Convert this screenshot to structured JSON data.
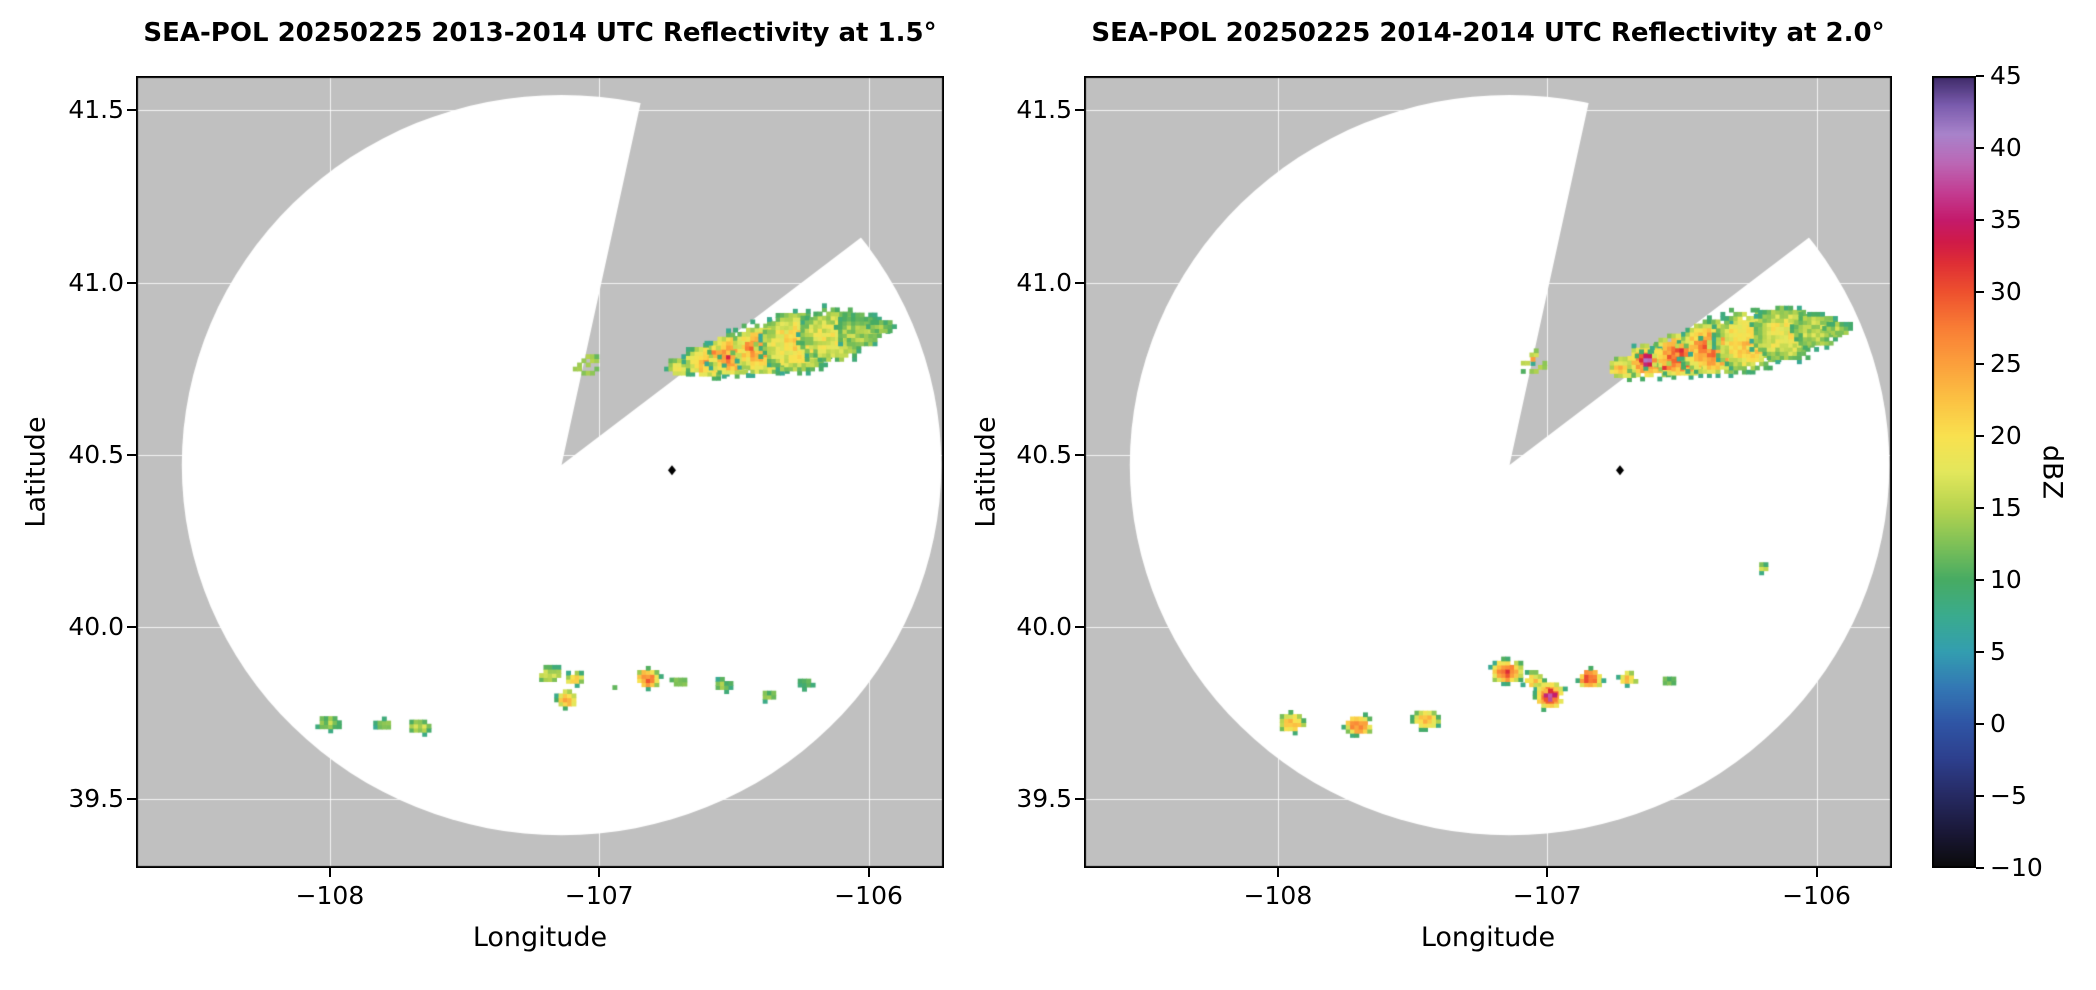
{
  "style": {
    "background": "#ffffff",
    "outside_gray": "#c0c0c0",
    "coverage_white": "#ffffff",
    "frame_color": "#000000"
  },
  "chart_data": {
    "type": "heatmap",
    "subtype": "radar-ppi-reflectivity",
    "colorbar": {
      "label": "dBZ",
      "range": [
        -10,
        45
      ],
      "ticks": [
        {
          "v": -10,
          "label": "−10"
        },
        {
          "v": -5,
          "label": "−5"
        },
        {
          "v": 0,
          "label": "0"
        },
        {
          "v": 5,
          "label": "5"
        },
        {
          "v": 10,
          "label": "10"
        },
        {
          "v": 15,
          "label": "15"
        },
        {
          "v": 20,
          "label": "20"
        },
        {
          "v": 25,
          "label": "25"
        },
        {
          "v": 30,
          "label": "30"
        },
        {
          "v": 35,
          "label": "35"
        },
        {
          "v": 40,
          "label": "40"
        },
        {
          "v": 45,
          "label": "45"
        }
      ],
      "stops": [
        [
          -10,
          "#0b0b0b"
        ],
        [
          -7.5,
          "#1a1838"
        ],
        [
          -5,
          "#262a63"
        ],
        [
          -2.5,
          "#2d3f8d"
        ],
        [
          0,
          "#2f55a5"
        ],
        [
          2.5,
          "#3378b4"
        ],
        [
          5,
          "#339eb0"
        ],
        [
          7.5,
          "#3aab8e"
        ],
        [
          10,
          "#47ab63"
        ],
        [
          12.5,
          "#7fc157"
        ],
        [
          15,
          "#b7d44f"
        ],
        [
          17.5,
          "#e3e75c"
        ],
        [
          20,
          "#f9e14f"
        ],
        [
          22.5,
          "#fbc243"
        ],
        [
          25,
          "#fba03c"
        ],
        [
          27.5,
          "#f97e35"
        ],
        [
          30,
          "#ee512e"
        ],
        [
          32,
          "#df2f35"
        ],
        [
          33.5,
          "#d01a48"
        ],
        [
          35,
          "#c41a6b"
        ],
        [
          37,
          "#c33e93"
        ],
        [
          39,
          "#bb68b6"
        ],
        [
          41,
          "#a883cb"
        ],
        [
          43,
          "#7b5cae"
        ],
        [
          45,
          "#3d2a68"
        ]
      ]
    },
    "panels": [
      {
        "title": "SEA-POL 20250225 2013-2014 UTC Reflectivity at 1.5°",
        "xlabel": "Longitude",
        "ylabel": "Latitude",
        "xlim": [
          -108.72,
          -105.72
        ],
        "ylim": [
          39.3,
          41.6
        ],
        "xticks": [
          {
            "v": -108,
            "label": "−108"
          },
          {
            "v": -107,
            "label": "−107"
          },
          {
            "v": -106,
            "label": "−106"
          }
        ],
        "yticks": [
          {
            "v": 39.5,
            "label": "39.5"
          },
          {
            "v": 40.0,
            "label": "40.0"
          },
          {
            "v": 40.5,
            "label": "40.5"
          },
          {
            "v": 41.0,
            "label": "41.0"
          },
          {
            "v": 41.5,
            "label": "41.5"
          }
        ],
        "radar": {
          "lon": -107.14,
          "lat": 40.47,
          "radius_lon": 1.41,
          "radius_lat": 1.075,
          "wedge_az": [
            12,
            52
          ]
        },
        "marker": {
          "lon": -106.73,
          "lat": 40.455
        },
        "echoes": [
          {
            "x": -106.7,
            "y": 40.755,
            "rx": 0.05,
            "ry": 0.03,
            "core": 18
          },
          {
            "x": -106.6,
            "y": 40.77,
            "rx": 0.085,
            "ry": 0.048,
            "core": 24
          },
          {
            "x": -106.5,
            "y": 40.79,
            "rx": 0.1,
            "ry": 0.062,
            "core": 27
          },
          {
            "x": -106.39,
            "y": 40.805,
            "rx": 0.12,
            "ry": 0.075,
            "core": 25
          },
          {
            "x": -106.27,
            "y": 40.825,
            "rx": 0.13,
            "ry": 0.088,
            "core": 21
          },
          {
            "x": -106.14,
            "y": 40.845,
            "rx": 0.12,
            "ry": 0.08,
            "core": 18
          },
          {
            "x": -106.03,
            "y": 40.86,
            "rx": 0.09,
            "ry": 0.05,
            "core": 15
          },
          {
            "x": -105.95,
            "y": 40.87,
            "rx": 0.05,
            "ry": 0.022,
            "core": 13
          },
          {
            "x": -106.52,
            "y": 40.78,
            "rx": 0.032,
            "ry": 0.02,
            "core": 31
          },
          {
            "x": -106.44,
            "y": 40.815,
            "rx": 0.026,
            "ry": 0.018,
            "core": 30
          },
          {
            "x": -106.57,
            "y": 40.8,
            "rx": 0.02,
            "ry": 0.014,
            "core": 29
          },
          {
            "x": -107.05,
            "y": 40.765,
            "rx": 0.055,
            "ry": 0.04,
            "core": 13,
            "sparse": true
          },
          {
            "x": -108.0,
            "y": 39.72,
            "rx": 0.045,
            "ry": 0.022,
            "core": 14
          },
          {
            "x": -107.8,
            "y": 39.715,
            "rx": 0.03,
            "ry": 0.018,
            "core": 13
          },
          {
            "x": -107.67,
            "y": 39.71,
            "rx": 0.042,
            "ry": 0.022,
            "core": 16
          },
          {
            "x": -107.18,
            "y": 39.86,
            "rx": 0.05,
            "ry": 0.025,
            "core": 17
          },
          {
            "x": -107.09,
            "y": 39.85,
            "rx": 0.04,
            "ry": 0.02,
            "core": 20
          },
          {
            "x": -107.12,
            "y": 39.79,
            "rx": 0.038,
            "ry": 0.026,
            "core": 25
          },
          {
            "x": -106.96,
            "y": 39.82,
            "rx": 0.03,
            "ry": 0.02,
            "core": 11,
            "sparse": true
          },
          {
            "x": -106.82,
            "y": 39.85,
            "rx": 0.046,
            "ry": 0.03,
            "core": 28
          },
          {
            "x": -106.7,
            "y": 39.84,
            "rx": 0.03,
            "ry": 0.018,
            "core": 15
          },
          {
            "x": -106.54,
            "y": 39.83,
            "rx": 0.035,
            "ry": 0.018,
            "core": 13
          },
          {
            "x": -106.37,
            "y": 39.8,
            "rx": 0.03,
            "ry": 0.016,
            "core": 12
          },
          {
            "x": -106.24,
            "y": 39.835,
            "rx": 0.03,
            "ry": 0.016,
            "core": 12
          }
        ]
      },
      {
        "title": "SEA-POL 20250225 2014-2014 UTC Reflectivity at 2.0°",
        "xlabel": "Longitude",
        "ylabel": "Latitude",
        "xlim": [
          -108.72,
          -105.72
        ],
        "ylim": [
          39.3,
          41.6
        ],
        "xticks": [
          {
            "v": -108,
            "label": "−108"
          },
          {
            "v": -107,
            "label": "−107"
          },
          {
            "v": -106,
            "label": "−106"
          }
        ],
        "yticks": [
          {
            "v": 39.5,
            "label": "39.5"
          },
          {
            "v": 40.0,
            "label": "40.0"
          },
          {
            "v": 40.5,
            "label": "40.5"
          },
          {
            "v": 41.0,
            "label": "41.0"
          },
          {
            "v": 41.5,
            "label": "41.5"
          }
        ],
        "radar": {
          "lon": -107.14,
          "lat": 40.47,
          "radius_lon": 1.41,
          "radius_lat": 1.075,
          "wedge_az": [
            12,
            52
          ]
        },
        "marker": {
          "lon": -106.73,
          "lat": 40.455
        },
        "echoes": [
          {
            "x": -106.72,
            "y": 40.75,
            "rx": 0.055,
            "ry": 0.032,
            "core": 22
          },
          {
            "x": -106.62,
            "y": 40.77,
            "rx": 0.09,
            "ry": 0.05,
            "core": 28
          },
          {
            "x": -106.5,
            "y": 40.79,
            "rx": 0.11,
            "ry": 0.065,
            "core": 30
          },
          {
            "x": -106.38,
            "y": 40.81,
            "rx": 0.13,
            "ry": 0.08,
            "core": 27
          },
          {
            "x": -106.25,
            "y": 40.83,
            "rx": 0.13,
            "ry": 0.09,
            "core": 22
          },
          {
            "x": -106.12,
            "y": 40.85,
            "rx": 0.12,
            "ry": 0.08,
            "core": 19
          },
          {
            "x": -106.0,
            "y": 40.862,
            "rx": 0.09,
            "ry": 0.05,
            "core": 16
          },
          {
            "x": -105.92,
            "y": 40.865,
            "rx": 0.05,
            "ry": 0.022,
            "core": 14
          },
          {
            "x": -106.63,
            "y": 40.775,
            "rx": 0.036,
            "ry": 0.024,
            "core": 42
          },
          {
            "x": -106.5,
            "y": 40.8,
            "rx": 0.032,
            "ry": 0.02,
            "core": 33
          },
          {
            "x": -106.42,
            "y": 40.82,
            "rx": 0.026,
            "ry": 0.018,
            "core": 31
          },
          {
            "x": -106.56,
            "y": 40.755,
            "rx": 0.02,
            "ry": 0.014,
            "core": 32
          },
          {
            "x": -107.05,
            "y": 40.77,
            "rx": 0.055,
            "ry": 0.04,
            "core": 15,
            "sparse": true
          },
          {
            "x": -107.055,
            "y": 40.775,
            "rx": 0.014,
            "ry": 0.01,
            "core": 26
          },
          {
            "x": -107.95,
            "y": 39.72,
            "rx": 0.05,
            "ry": 0.028,
            "core": 24
          },
          {
            "x": -107.7,
            "y": 39.715,
            "rx": 0.055,
            "ry": 0.03,
            "core": 27
          },
          {
            "x": -107.45,
            "y": 39.73,
            "rx": 0.05,
            "ry": 0.028,
            "core": 25
          },
          {
            "x": -107.15,
            "y": 39.87,
            "rx": 0.06,
            "ry": 0.035,
            "core": 30
          },
          {
            "x": -107.05,
            "y": 39.845,
            "rx": 0.04,
            "ry": 0.025,
            "core": 22
          },
          {
            "x": -106.99,
            "y": 39.8,
            "rx": 0.055,
            "ry": 0.04,
            "core": 30
          },
          {
            "x": -106.99,
            "y": 39.8,
            "rx": 0.03,
            "ry": 0.022,
            "core": 41
          },
          {
            "x": -106.84,
            "y": 39.85,
            "rx": 0.046,
            "ry": 0.03,
            "core": 31
          },
          {
            "x": -106.7,
            "y": 39.85,
            "rx": 0.035,
            "ry": 0.02,
            "core": 22
          },
          {
            "x": -106.55,
            "y": 39.84,
            "rx": 0.028,
            "ry": 0.015,
            "core": 14
          },
          {
            "x": -106.2,
            "y": 40.17,
            "rx": 0.02,
            "ry": 0.013,
            "core": 14
          }
        ]
      }
    ]
  }
}
